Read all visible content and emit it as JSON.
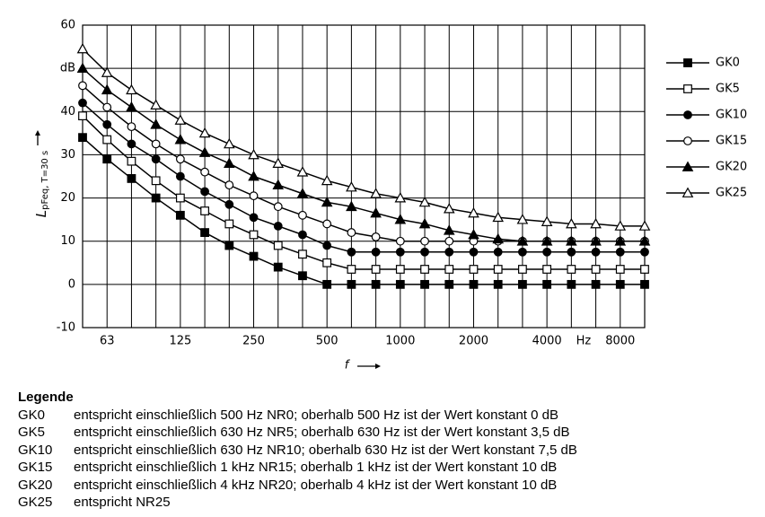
{
  "chart_data": {
    "type": "line",
    "ylabel": "L",
    "ylabel_sub": "pFeq, T=30 s",
    "xlabel": "f",
    "x_unit": "Hz",
    "categories": [
      null,
      "63",
      null,
      null,
      "125",
      null,
      null,
      "250",
      null,
      null,
      "500",
      null,
      null,
      "1000",
      null,
      null,
      "2000",
      null,
      null,
      "4000",
      null,
      null,
      "8000",
      null
    ],
    "ylim": [
      -10,
      60
    ],
    "yticks": [
      -10,
      0,
      10,
      20,
      30,
      40,
      {
        "value": 50,
        "label": "dB"
      },
      60
    ],
    "grid": true,
    "series": [
      {
        "name": "GK0",
        "color": "#000000",
        "marker": "square",
        "filled": true,
        "values": [
          34,
          29,
          24.5,
          20,
          16,
          12,
          9,
          6.5,
          4,
          2,
          0,
          0,
          0,
          0,
          0,
          0,
          0,
          0,
          0,
          0,
          0,
          0,
          0,
          0
        ]
      },
      {
        "name": "GK5",
        "color": "#000000",
        "marker": "square",
        "filled": false,
        "values": [
          39,
          33.5,
          28.5,
          24,
          20,
          17,
          14,
          11.5,
          9,
          7,
          5,
          3.5,
          3.5,
          3.5,
          3.5,
          3.5,
          3.5,
          3.5,
          3.5,
          3.5,
          3.5,
          3.5,
          3.5,
          3.5
        ]
      },
      {
        "name": "GK10",
        "color": "#000000",
        "marker": "circle",
        "filled": true,
        "values": [
          42,
          37,
          32.5,
          29,
          25,
          21.5,
          18.5,
          15.5,
          13.5,
          11.5,
          9,
          7.5,
          7.5,
          7.5,
          7.5,
          7.5,
          7.5,
          7.5,
          7.5,
          7.5,
          7.5,
          7.5,
          7.5,
          7.5
        ]
      },
      {
        "name": "GK15",
        "color": "#000000",
        "marker": "circle",
        "filled": false,
        "values": [
          46,
          41,
          36.5,
          32.5,
          29,
          26,
          23,
          20.5,
          18,
          16,
          14,
          12,
          11,
          10,
          10,
          10,
          10,
          10,
          10,
          10,
          10,
          10,
          10,
          10
        ]
      },
      {
        "name": "GK20",
        "color": "#000000",
        "marker": "triangle",
        "filled": true,
        "values": [
          50,
          45,
          41,
          37,
          33.5,
          30.5,
          28,
          25,
          23,
          21,
          19,
          18,
          16.5,
          15,
          14,
          12.5,
          11.5,
          10.5,
          10,
          10,
          10,
          10,
          10,
          10
        ]
      },
      {
        "name": "GK25",
        "color": "#000000",
        "marker": "triangle",
        "filled": false,
        "values": [
          54.5,
          49,
          45,
          41.5,
          38,
          35,
          32.5,
          30,
          28,
          26,
          24,
          22.5,
          21,
          20,
          19,
          17.5,
          16.5,
          15.5,
          15,
          14.5,
          14,
          14,
          13.5,
          13.5
        ]
      }
    ]
  },
  "legend_text": {
    "title": "Legende",
    "rows": [
      [
        "GK0",
        "entspricht einschließlich 500 Hz NR0; oberhalb 500 Hz ist der Wert konstant 0 dB"
      ],
      [
        "GK5",
        "entspricht einschließlich 630 Hz NR5; oberhalb 630 Hz ist der Wert konstant 3,5 dB"
      ],
      [
        "GK10",
        "entspricht einschließlich 630 Hz NR10; oberhalb 630 Hz ist der Wert konstant 7,5 dB"
      ],
      [
        "GK15",
        "entspricht einschließlich 1 kHz NR15; oberhalb 1 kHz ist der Wert konstant 10 dB"
      ],
      [
        "GK20",
        "entspricht einschließlich 4 kHz NR20; oberhalb 4 kHz ist der Wert konstant 10 dB"
      ],
      [
        "GK25",
        "entspricht NR25"
      ]
    ]
  }
}
